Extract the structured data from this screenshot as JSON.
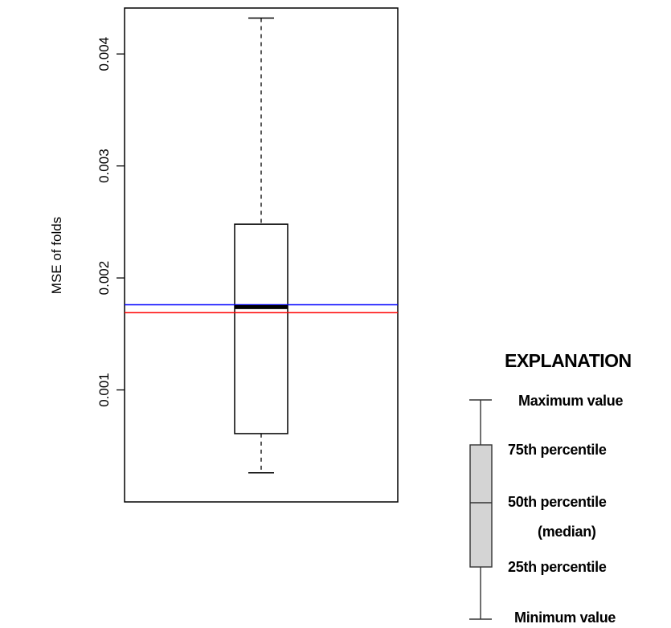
{
  "chart_data": {
    "type": "box",
    "ylabel": "MSE of folds",
    "ylim": [
      0,
      0.00441
    ],
    "yticks": [
      0.001,
      0.002,
      0.003,
      0.004
    ],
    "ytick_labels": [
      "0.001",
      "0.002",
      "0.003",
      "0.004"
    ],
    "box": {
      "min": 0.00026,
      "q1": 0.00061,
      "median": 0.00174,
      "q3": 0.00248,
      "max": 0.00432
    },
    "reference_lines": [
      {
        "value": 0.00176,
        "color": "#0000ff"
      },
      {
        "value": 0.00169,
        "color": "#ff0000"
      }
    ],
    "grid": false
  },
  "legend": {
    "title": "EXPLANATION",
    "items": [
      {
        "label": "Maximum value"
      },
      {
        "label": "75th percentile"
      },
      {
        "label": "50th percentile"
      },
      {
        "label": "(median)"
      },
      {
        "label": "25th percentile"
      },
      {
        "label": "Minimum value"
      }
    ],
    "box_fill": "#d4d4d4",
    "stroke": "#333333"
  }
}
